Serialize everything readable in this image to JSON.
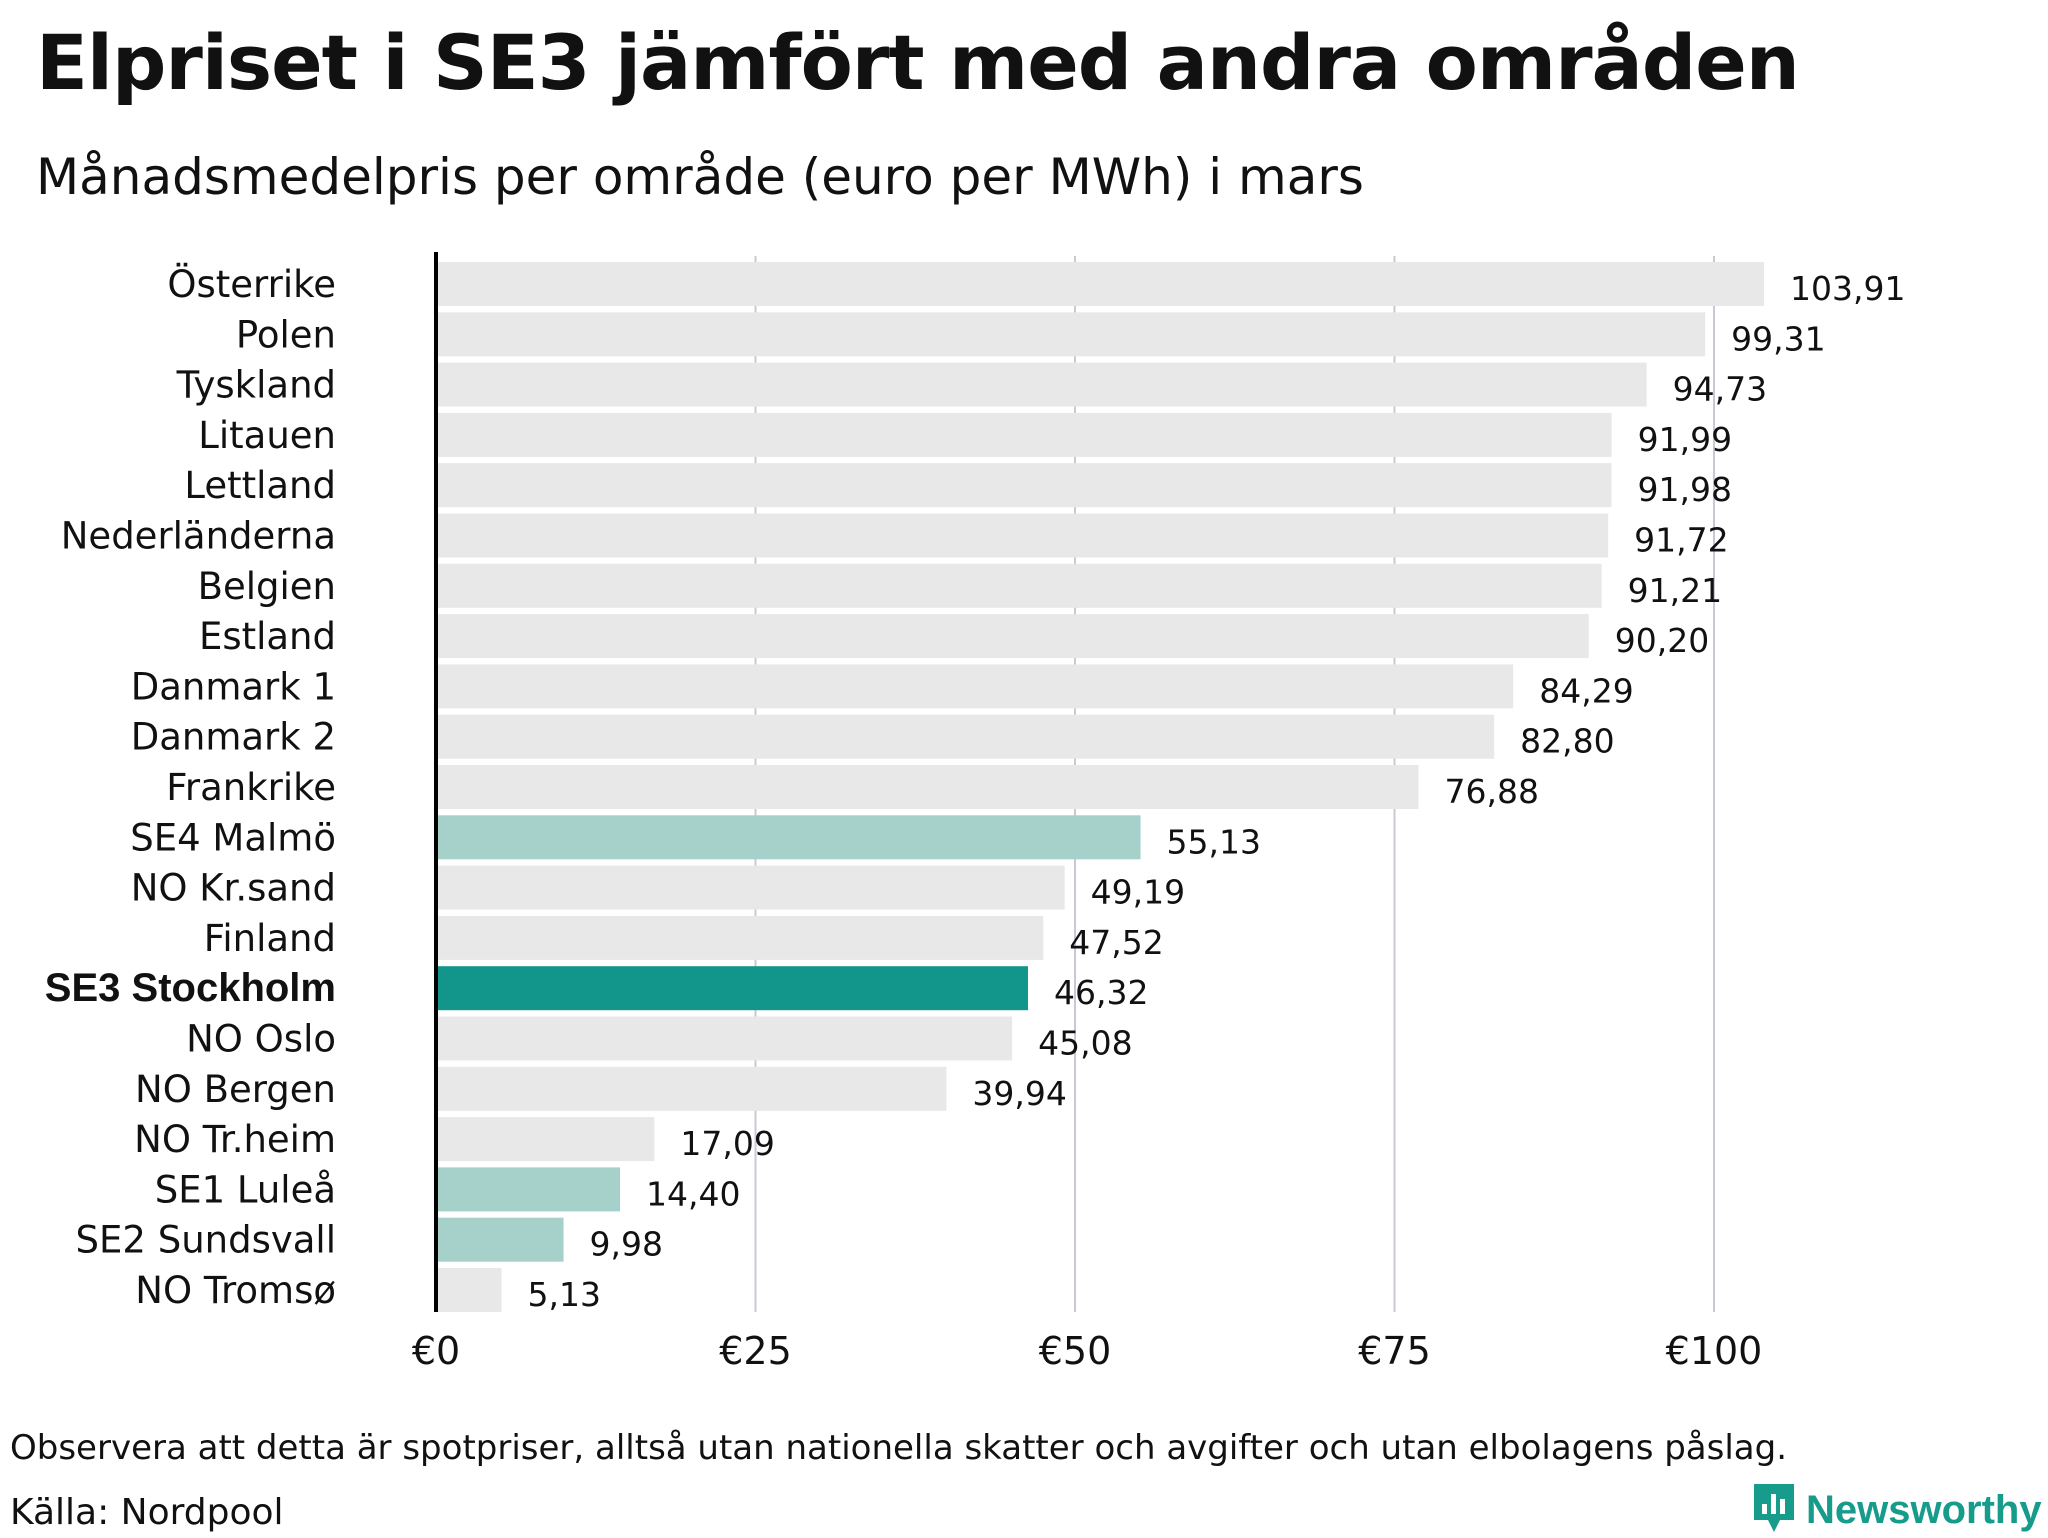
{
  "title": "Elpriset i SE3 jämfört med andra områden",
  "subtitle": "Månadsmedelpris per område (euro per MWh) i mars",
  "footnote": "Observera att detta är spotpriser, alltså utan nationella skatter och avgifter och utan elbolagens påslag.",
  "source": "Källa: Nordpool",
  "brand": {
    "name": "Newsworthy",
    "icon": "newsworthy-logo-icon",
    "color": "#179b8b"
  },
  "colors": {
    "default": "#e8e8e8",
    "swedish_area": "#a6d0ca",
    "highlight": "#12958a",
    "grid": "#c9c9d6",
    "axis": "#000000"
  },
  "chart_data": {
    "type": "bar",
    "orientation": "horizontal",
    "unit": "euro per MWh",
    "xlim": [
      0,
      110
    ],
    "xticks": [
      0,
      25,
      50,
      75,
      100
    ],
    "xtick_labels": [
      "€0",
      "€25",
      "€50",
      "€75",
      "€100"
    ],
    "grid": "vertical",
    "categories": [
      {
        "label": "Österrike",
        "value": 103.91,
        "value_label": "103,91",
        "group": "default"
      },
      {
        "label": "Polen",
        "value": 99.31,
        "value_label": "99,31",
        "group": "default"
      },
      {
        "label": "Tyskland",
        "value": 94.73,
        "value_label": "94,73",
        "group": "default"
      },
      {
        "label": "Litauen",
        "value": 91.99,
        "value_label": "91,99",
        "group": "default"
      },
      {
        "label": "Lettland",
        "value": 91.98,
        "value_label": "91,98",
        "group": "default"
      },
      {
        "label": "Nederländerna",
        "value": 91.72,
        "value_label": "91,72",
        "group": "default"
      },
      {
        "label": "Belgien",
        "value": 91.21,
        "value_label": "91,21",
        "group": "default"
      },
      {
        "label": "Estland",
        "value": 90.2,
        "value_label": "90,20",
        "group": "default"
      },
      {
        "label": "Danmark 1",
        "value": 84.29,
        "value_label": "84,29",
        "group": "default"
      },
      {
        "label": "Danmark 2",
        "value": 82.8,
        "value_label": "82,80",
        "group": "default"
      },
      {
        "label": "Frankrike",
        "value": 76.88,
        "value_label": "76,88",
        "group": "default"
      },
      {
        "label": "SE4 Malmö",
        "value": 55.13,
        "value_label": "55,13",
        "group": "swedish_area"
      },
      {
        "label": "NO Kr.sand",
        "value": 49.19,
        "value_label": "49,19",
        "group": "default"
      },
      {
        "label": "Finland",
        "value": 47.52,
        "value_label": "47,52",
        "group": "default"
      },
      {
        "label": "SE3 Stockholm",
        "value": 46.32,
        "value_label": "46,32",
        "group": "highlight"
      },
      {
        "label": "NO Oslo",
        "value": 45.08,
        "value_label": "45,08",
        "group": "default"
      },
      {
        "label": "NO Bergen",
        "value": 39.94,
        "value_label": "39,94",
        "group": "default"
      },
      {
        "label": "NO Tr.heim",
        "value": 17.09,
        "value_label": "17,09",
        "group": "default"
      },
      {
        "label": "SE1 Luleå",
        "value": 14.4,
        "value_label": "14,40",
        "group": "swedish_area"
      },
      {
        "label": "SE2 Sundsvall",
        "value": 9.98,
        "value_label": "9,98",
        "group": "swedish_area"
      },
      {
        "label": "NO Tromsø",
        "value": 5.13,
        "value_label": "5,13",
        "group": "default"
      }
    ]
  }
}
